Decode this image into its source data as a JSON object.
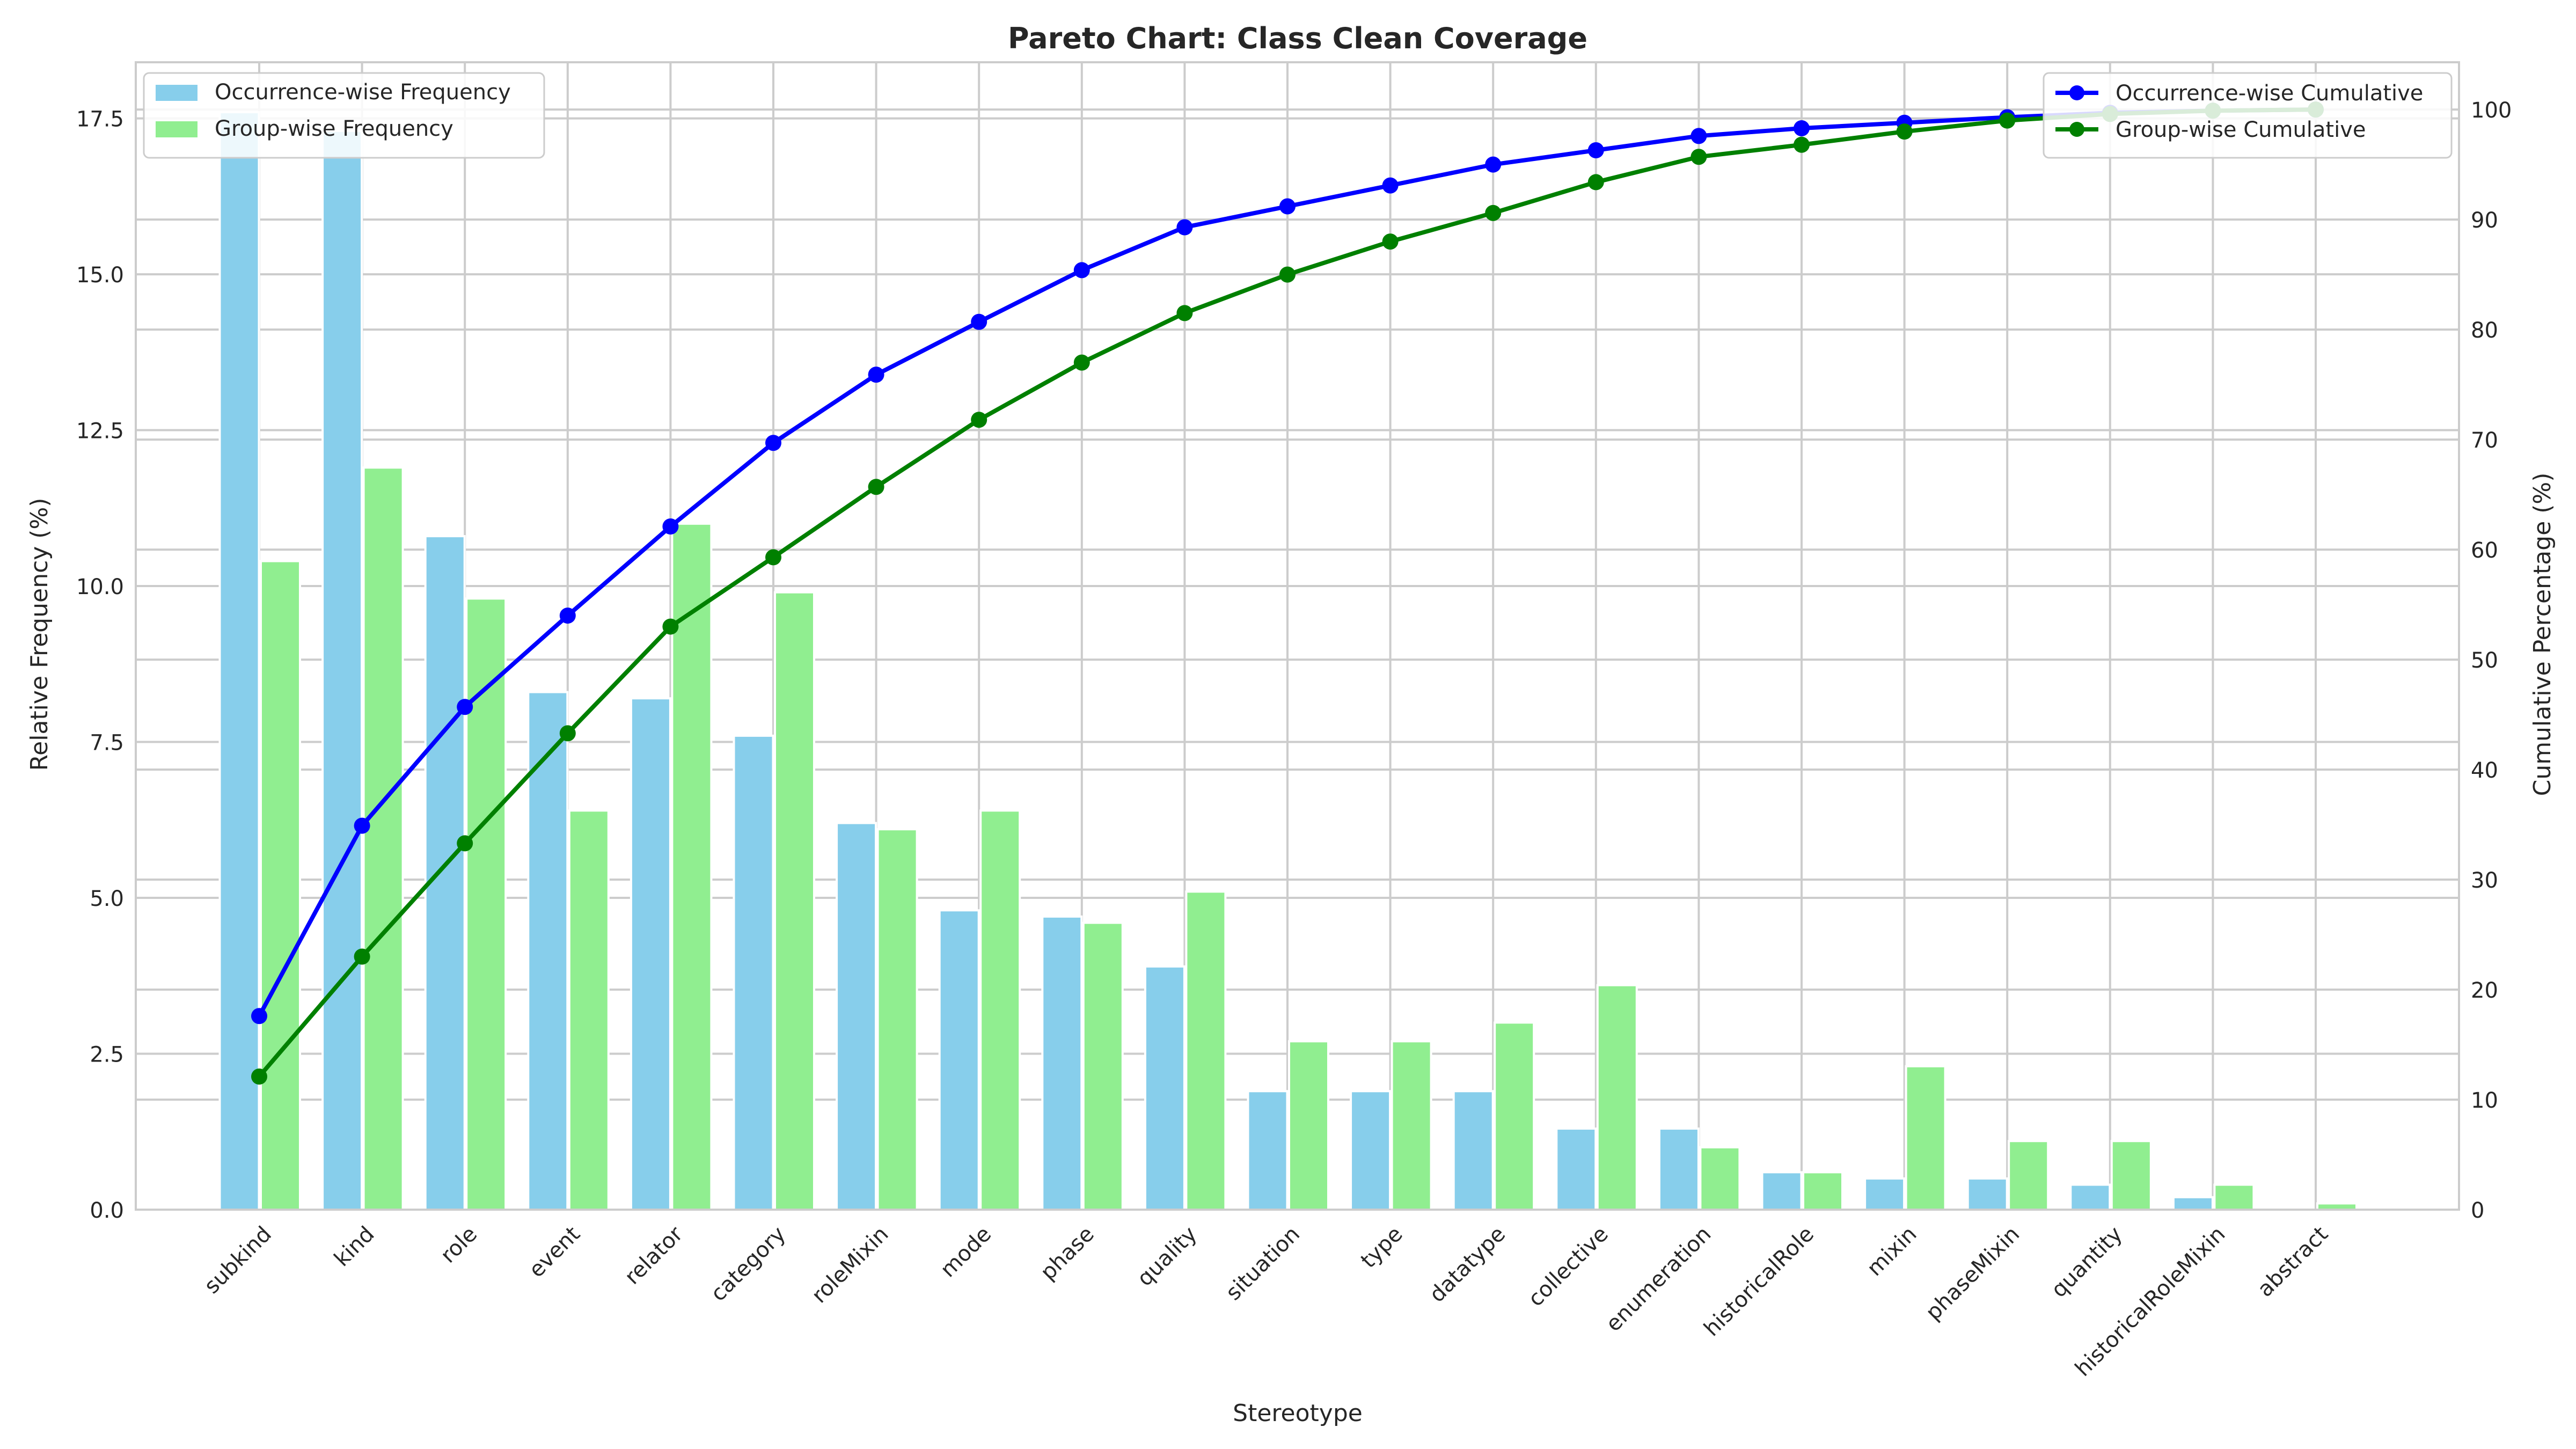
{
  "chart_data": {
    "type": "bar",
    "title": "Pareto Chart: Class Clean Coverage",
    "xlabel": "Stereotype",
    "ylabel": "Relative Frequency (%)",
    "y2label": "Cumulative Percentage (%)",
    "ylim": [
      0,
      18.4
    ],
    "y2lim": [
      0,
      104.3
    ],
    "yticks": [
      "0.0",
      "2.5",
      "5.0",
      "7.5",
      "10.0",
      "12.5",
      "15.0",
      "17.5"
    ],
    "y2ticks": [
      "0",
      "10",
      "20",
      "30",
      "40",
      "50",
      "60",
      "70",
      "80",
      "90",
      "100"
    ],
    "grid": true,
    "categories": [
      "subkind",
      "kind",
      "role",
      "event",
      "relator",
      "category",
      "roleMixin",
      "mode",
      "phase",
      "quality",
      "situation",
      "type",
      "datatype",
      "collective",
      "enumeration",
      "historicalRole",
      "mixin",
      "phaseMixin",
      "quantity",
      "historicalRoleMixin",
      "abstract"
    ],
    "bar_series": [
      {
        "name": "Occurrence-wise Frequency",
        "color": "#87ceeb",
        "values": [
          17.6,
          17.3,
          10.8,
          8.3,
          8.2,
          7.6,
          6.2,
          4.8,
          4.7,
          3.9,
          1.9,
          1.9,
          1.9,
          1.3,
          1.3,
          0.6,
          0.5,
          0.5,
          0.4,
          0.2,
          0.0
        ]
      },
      {
        "name": "Group-wise Frequency",
        "color": "#90ee90",
        "values": [
          10.4,
          11.9,
          9.8,
          6.4,
          11.0,
          9.9,
          6.1,
          6.4,
          4.6,
          5.1,
          2.7,
          2.7,
          3.0,
          3.6,
          1.0,
          0.6,
          2.3,
          1.1,
          1.1,
          0.4,
          0.1
        ]
      }
    ],
    "line_series": [
      {
        "name": "Occurrence-wise Cumulative",
        "color": "#0000ff",
        "values": [
          17.6,
          34.9,
          45.7,
          54.0,
          62.1,
          69.7,
          75.9,
          80.7,
          85.4,
          89.3,
          91.2,
          93.1,
          95.0,
          96.3,
          97.6,
          98.3,
          98.8,
          99.3,
          99.7,
          99.9,
          100.0
        ]
      },
      {
        "name": "Group-wise Cumulative",
        "color": "#008000",
        "values": [
          12.1,
          23.0,
          33.3,
          43.3,
          53.0,
          59.3,
          65.7,
          71.8,
          77.0,
          81.5,
          85.0,
          88.0,
          90.6,
          93.4,
          95.7,
          96.8,
          98.0,
          99.0,
          99.6,
          99.9,
          100.0
        ]
      }
    ],
    "legend_left": "top-left",
    "legend_right": "top-right"
  }
}
